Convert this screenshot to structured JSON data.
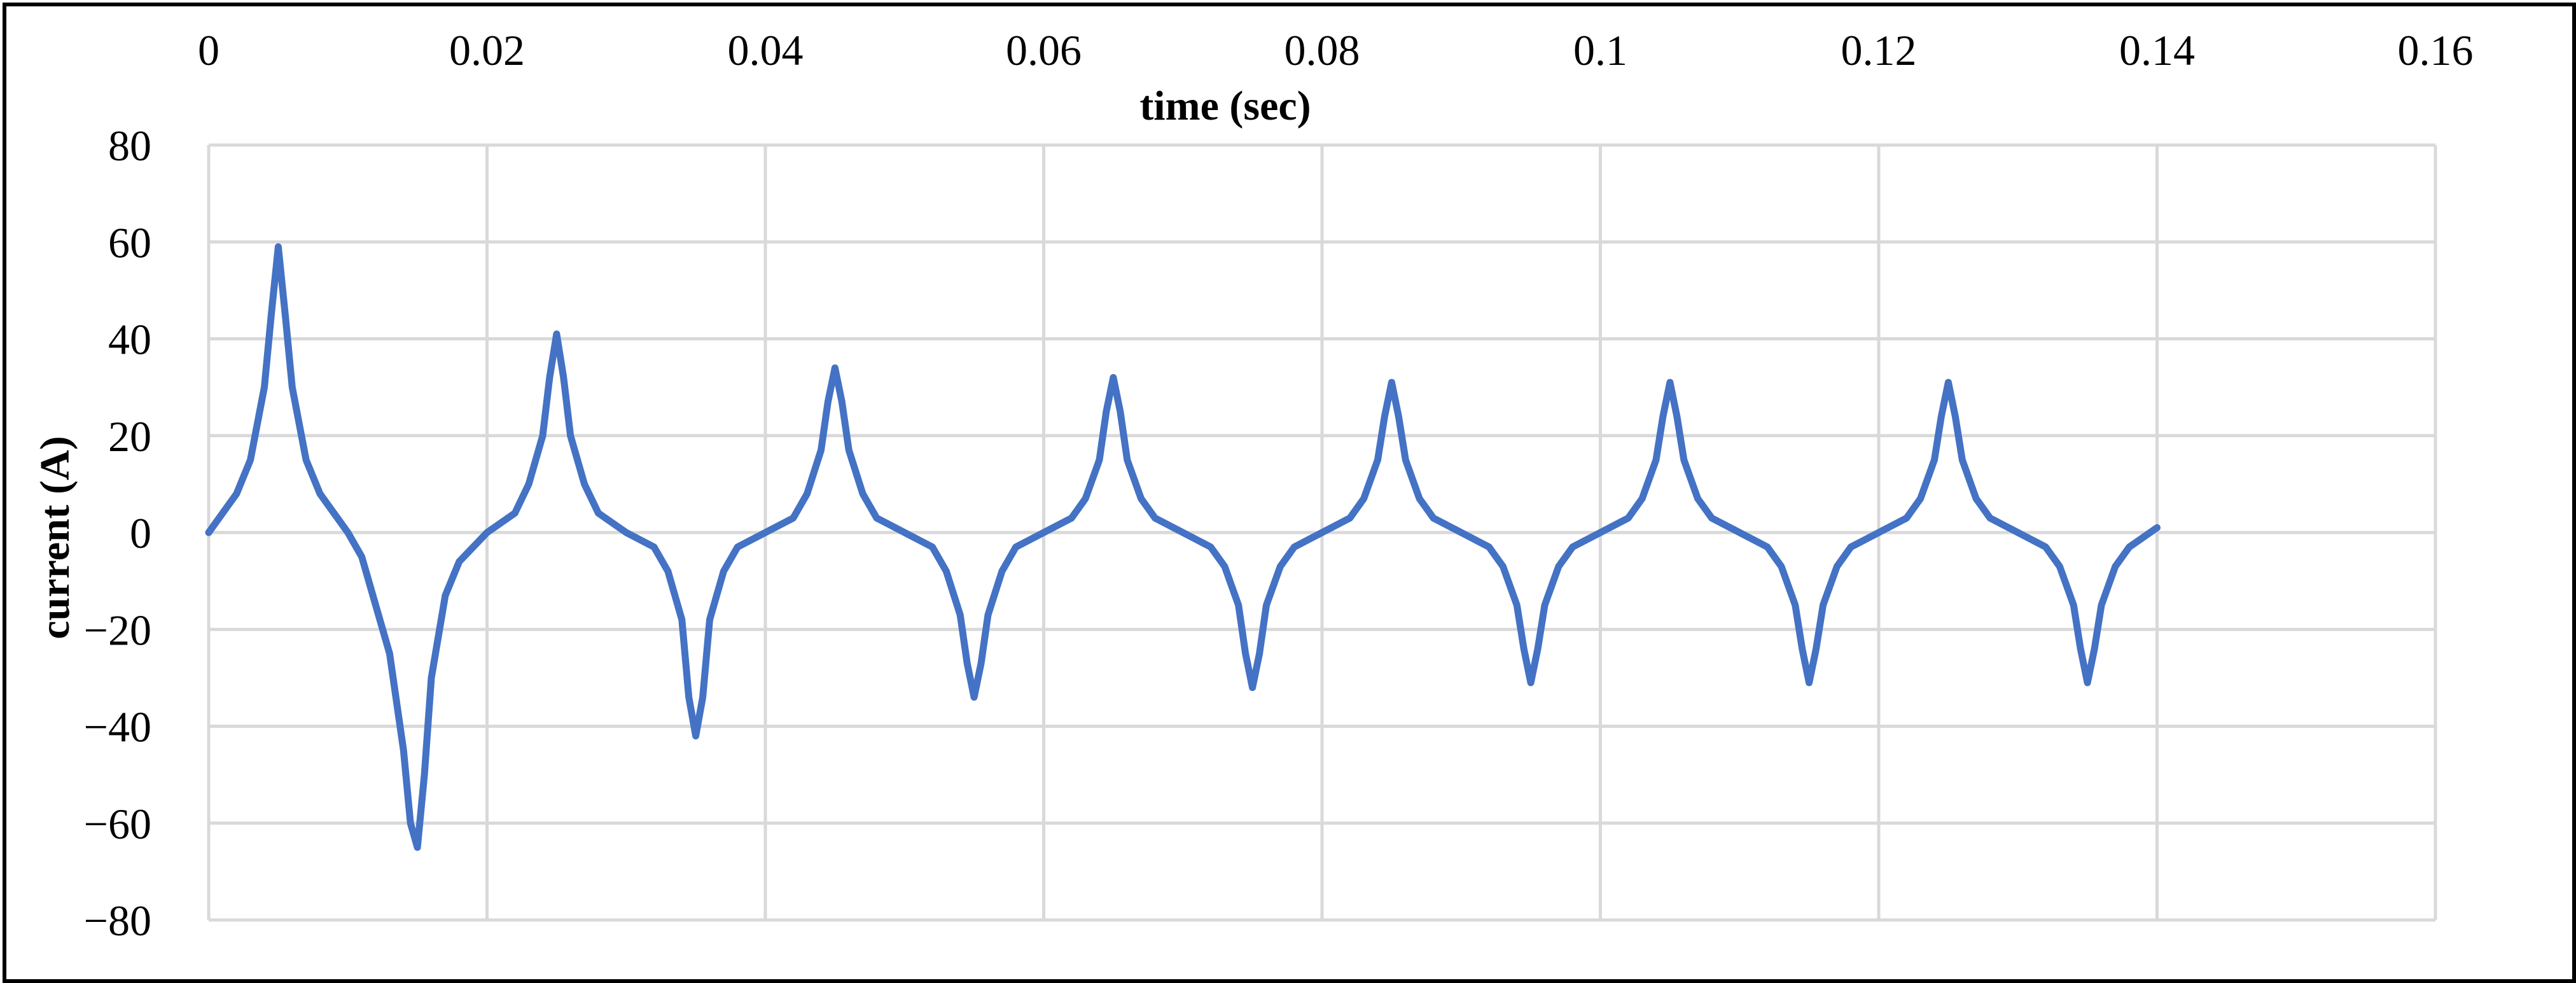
{
  "chart_data": {
    "type": "line",
    "title": "",
    "xlabel": "time (sec)",
    "ylabel": "current (A)",
    "xlim": [
      0,
      0.16
    ],
    "ylim": [
      -80,
      80
    ],
    "x_ticks": [
      "0",
      "0.02",
      "0.04",
      "0.06",
      "0.08",
      "0.1",
      "0.12",
      "0.14",
      "0.16"
    ],
    "y_ticks": [
      "80",
      "60",
      "40",
      "20",
      "0",
      "−20",
      "−40",
      "−60",
      "−80"
    ],
    "x_axis_position": "top",
    "grid": true,
    "legend": "none",
    "series": [
      {
        "color": "#4472C4",
        "x": [
          0,
          0.002,
          0.003,
          0.004,
          0.0045,
          0.005,
          0.0055,
          0.006,
          0.007,
          0.008,
          0.01,
          0.011,
          0.012,
          0.013,
          0.014,
          0.0145,
          0.015,
          0.0155,
          0.016,
          0.017,
          0.018,
          0.02,
          0.022,
          0.023,
          0.024,
          0.0245,
          0.025,
          0.0255,
          0.026,
          0.027,
          0.028,
          0.03,
          0.032,
          0.033,
          0.034,
          0.0345,
          0.035,
          0.0355,
          0.036,
          0.037,
          0.038,
          0.04,
          0.042,
          0.043,
          0.044,
          0.0445,
          0.045,
          0.0455,
          0.046,
          0.047,
          0.048,
          0.05,
          0.052,
          0.053,
          0.054,
          0.0545,
          0.055,
          0.0555,
          0.056,
          0.057,
          0.058,
          0.06,
          0.062,
          0.063,
          0.064,
          0.0645,
          0.065,
          0.0655,
          0.066,
          0.067,
          0.068,
          0.07,
          0.072,
          0.073,
          0.074,
          0.0745,
          0.075,
          0.0755,
          0.076,
          0.077,
          0.078,
          0.08,
          0.082,
          0.083,
          0.084,
          0.0845,
          0.085,
          0.0855,
          0.086,
          0.087,
          0.088,
          0.09,
          0.092,
          0.093,
          0.094,
          0.0945,
          0.095,
          0.0955,
          0.096,
          0.097,
          0.098,
          0.1,
          0.102,
          0.103,
          0.104,
          0.1045,
          0.105,
          0.1055,
          0.106,
          0.107,
          0.108,
          0.11,
          0.112,
          0.113,
          0.114,
          0.1145,
          0.115,
          0.1155,
          0.116,
          0.117,
          0.118,
          0.12,
          0.122,
          0.123,
          0.124,
          0.1245,
          0.125,
          0.1255,
          0.126,
          0.127,
          0.128,
          0.13,
          0.132,
          0.133,
          0.134,
          0.1345,
          0.135,
          0.1355,
          0.136,
          0.137,
          0.138,
          0.14
        ],
        "y": [
          0,
          8,
          15,
          30,
          45,
          59,
          45,
          30,
          15,
          8,
          0,
          -5,
          -15,
          -25,
          -45,
          -60,
          -65,
          -50,
          -30,
          -13,
          -6,
          0,
          4,
          10,
          20,
          32,
          41,
          32,
          20,
          10,
          4,
          0,
          -3,
          -8,
          -18,
          -34,
          -42,
          -34,
          -18,
          -8,
          -3,
          0,
          3,
          8,
          17,
          27,
          34,
          27,
          17,
          8,
          3,
          0,
          -3,
          -8,
          -17,
          -27,
          -34,
          -27,
          -17,
          -8,
          -3,
          0,
          3,
          7,
          15,
          25,
          32,
          25,
          15,
          7,
          3,
          0,
          -3,
          -7,
          -15,
          -25,
          -32,
          -25,
          -15,
          -7,
          -3,
          0,
          3,
          7,
          15,
          24,
          31,
          24,
          15,
          7,
          3,
          0,
          -3,
          -7,
          -15,
          -24,
          -31,
          -24,
          -15,
          -7,
          -3,
          0,
          3,
          7,
          15,
          24,
          31,
          24,
          15,
          7,
          3,
          0,
          -3,
          -7,
          -15,
          -24,
          -31,
          -24,
          -15,
          -7,
          -3,
          0,
          3,
          7,
          15,
          24,
          31,
          24,
          15,
          7,
          3,
          0,
          -3,
          -7,
          -15,
          -24,
          -31,
          -24,
          -15,
          -7,
          -3,
          1
        ]
      }
    ]
  }
}
